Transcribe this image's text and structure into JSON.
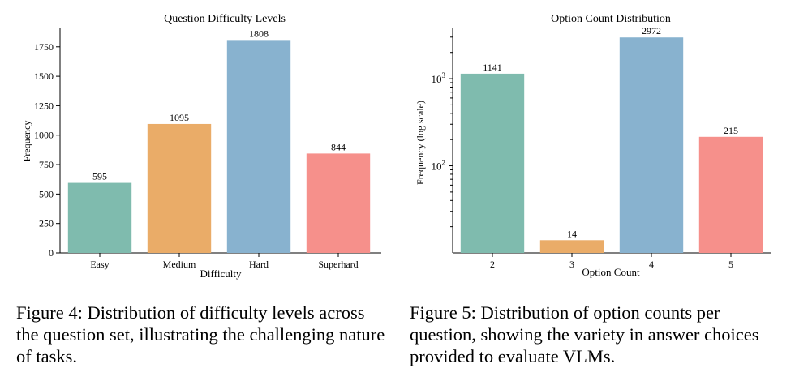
{
  "chart_data": [
    {
      "type": "bar",
      "title": "Question Difficulty Levels",
      "xlabel": "Difficulty",
      "ylabel": "Frequency",
      "categories": [
        "Easy",
        "Medium",
        "Hard",
        "Superhard"
      ],
      "values": [
        595,
        1095,
        1808,
        844
      ],
      "data_labels": [
        "595",
        "1095",
        "1808",
        "844"
      ],
      "colors": [
        "#7fbbae",
        "#eaac68",
        "#88b2cf",
        "#f6908b"
      ],
      "ylim": [
        0,
        1900
      ],
      "yticks": [
        0,
        250,
        500,
        750,
        1000,
        1250,
        1500,
        1750
      ],
      "ytick_labels": [
        "0",
        "250",
        "500",
        "750",
        "1000",
        "1250",
        "1500",
        "1750"
      ],
      "grid": false
    },
    {
      "type": "bar",
      "title": "Option Count Distribution",
      "xlabel": "Option Count",
      "ylabel": "Frequency (log scale)",
      "yscale": "log",
      "categories": [
        "2",
        "3",
        "4",
        "5"
      ],
      "values": [
        1141,
        14,
        2972,
        215
      ],
      "data_labels": [
        "1141",
        "14",
        "2972",
        "215"
      ],
      "colors": [
        "#7fbbae",
        "#eaac68",
        "#88b2cf",
        "#f6908b"
      ],
      "ylim": [
        10,
        3700
      ],
      "yticks": [
        100,
        1000
      ],
      "ytick_labels": [
        "10^2",
        "10^3"
      ],
      "grid": false
    }
  ],
  "captions": [
    "Figure 4: Distribution of difficulty levels across the question set, illustrating the challenging nature of tasks.",
    "Figure 5: Distribution of option counts per question, showing the variety in answer choices provided to evaluate VLMs."
  ]
}
